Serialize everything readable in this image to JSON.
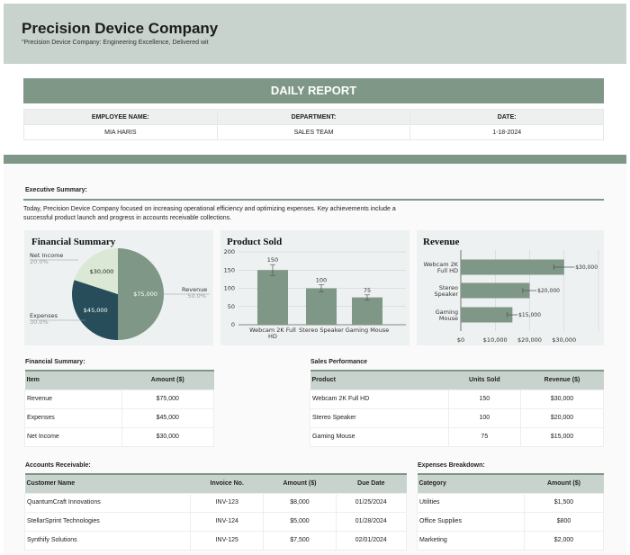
{
  "header": {
    "title": "Precision Device Company",
    "tagline": "\"Precision Device Company: Engineering Excellence, Delivered wit"
  },
  "report": {
    "title": "DAILY REPORT",
    "fields": [
      {
        "label": "EMPLOYEE NAME:",
        "value": "MIA HARIS"
      },
      {
        "label": "DEPARTMENT:",
        "value": "SALES TEAM"
      },
      {
        "label": "DATE:",
        "value": "1-18-2024"
      }
    ]
  },
  "executive": {
    "label": "Executive Summary:",
    "text": "Today, Precision Device Company focused on increasing operational efficiency and optimizing expenses. Key achievements include a successful product launch and progress in accounts receivable collections."
  },
  "colors": {
    "accent": "#7e9786",
    "dark": "#264d59",
    "light": "#dce8d6",
    "header": "#c9d3cd"
  },
  "chart_data": [
    {
      "type": "pie",
      "title": "Financial Summary",
      "slices": [
        {
          "label": "Revenue",
          "value": 75000,
          "display": "$75,000",
          "pct": "50.0%"
        },
        {
          "label": "Expenses",
          "value": 45000,
          "display": "$45,000",
          "pct": "30.0%"
        },
        {
          "label": "Net Income",
          "value": 30000,
          "display": "$30,000",
          "pct": "20.0%"
        }
      ]
    },
    {
      "type": "bar",
      "title": "Product Sold",
      "categories": [
        "Webcam 2K Full HD",
        "Stereo Speaker",
        "Gaming Mouse"
      ],
      "values": [
        150,
        100,
        75
      ],
      "errors": [
        15,
        10,
        7
      ],
      "ylim": [
        0,
        200
      ],
      "yticks": [
        0,
        50,
        100,
        150,
        200
      ]
    },
    {
      "type": "bar",
      "orientation": "horizontal",
      "title": "Revenue",
      "categories": [
        "Webcam 2K Full HD",
        "Stereo Speaker",
        "Gaming Mouse"
      ],
      "values": [
        30000,
        20000,
        15000
      ],
      "labels": [
        "$30,000",
        "$20,000",
        "$15,000"
      ],
      "errors": [
        3000,
        2000,
        1500
      ],
      "xlim": [
        0,
        40000
      ],
      "xticks": [
        "$0",
        "$10,000",
        "$20,000",
        "$30,000"
      ]
    }
  ],
  "tables": [
    {
      "label": "Financial Summary:",
      "headers": [
        "Item",
        "Amount ($)"
      ],
      "rows": [
        [
          "Revenue",
          "$75,000"
        ],
        [
          "Expenses",
          "$45,000"
        ],
        [
          "Net Income",
          "$30,000"
        ]
      ]
    },
    {
      "label": "Sales Performance",
      "headers": [
        "Product",
        "Units Sold",
        "Revenue ($)"
      ],
      "rows": [
        [
          "Webcam 2K Full HD",
          "150",
          "$30,000"
        ],
        [
          "Stereo Speaker",
          "100",
          "$20,000"
        ],
        [
          "Gaming Mouse",
          "75",
          "$15,000"
        ]
      ]
    },
    {
      "label": "Accounts Receivable:",
      "headers": [
        "Customer Name",
        "Invoice No.",
        "Amount ($)",
        "Due Date"
      ],
      "rows": [
        [
          "QuantumCraft Innovations",
          "INV-123",
          "$8,000",
          "01/25/2024"
        ],
        [
          "StellarSprint Technologies",
          "INV-124",
          "$5,000",
          "01/28/2024"
        ],
        [
          "Synthify Solutions",
          "INV-125",
          "$7,500",
          "02/01/2024"
        ]
      ]
    },
    {
      "label": "Expenses Breakdown:",
      "headers": [
        "Category",
        "Amount ($)"
      ],
      "rows": [
        [
          "Utilities",
          "$1,500"
        ],
        [
          "Office Supplies",
          "$800"
        ],
        [
          "Marketing",
          "$2,000"
        ]
      ]
    }
  ]
}
